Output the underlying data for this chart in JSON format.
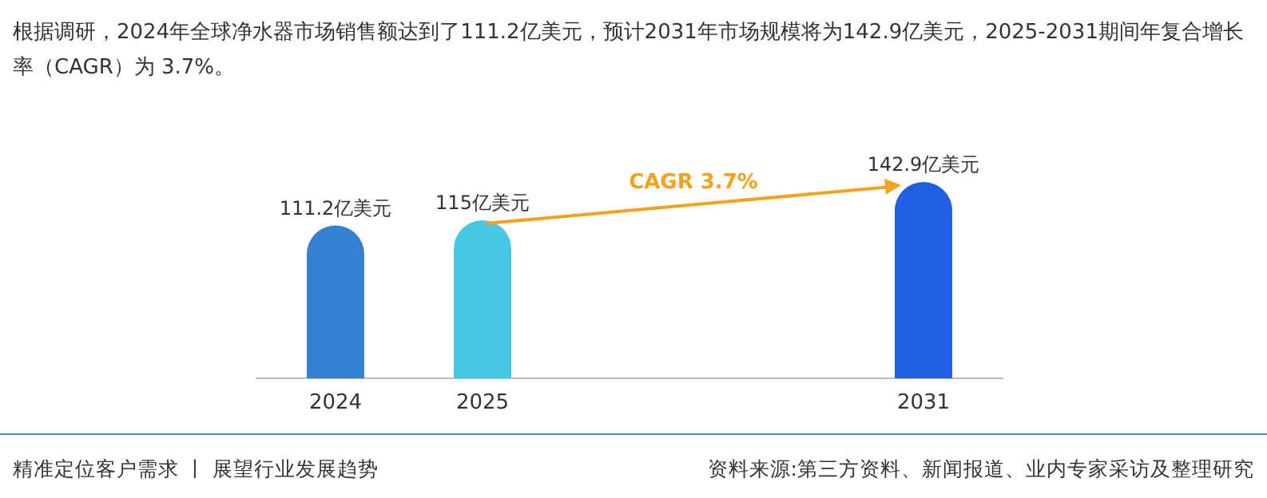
{
  "chart_data": {
    "type": "bar",
    "title": "根据调研，2024年全球净水器市场销售额达到了111.2亿美元，预计2031年市场规模将为142.9亿美元，2025-2031期间年复合增长率（CAGR）为 3.7%。",
    "categories": [
      "2024",
      "2025",
      null,
      null,
      "2031"
    ],
    "series": [
      {
        "colors": [
          "#3580d3",
          "#46c9e6",
          null,
          null,
          "#1f5fe2"
        ],
        "values": [
          111.2,
          115,
          null,
          null,
          142.9
        ],
        "value_labels": [
          "111.2亿美元",
          "115亿美元",
          null,
          null,
          "142.9亿美元"
        ]
      }
    ],
    "annotations": [
      "CAGR 3.7%",
      "精准定位客户需求 丨 展望行业发展趋势",
      "资料来源:第三方资料、新闻报道、业内专家采访及整理研究"
    ]
  }
}
